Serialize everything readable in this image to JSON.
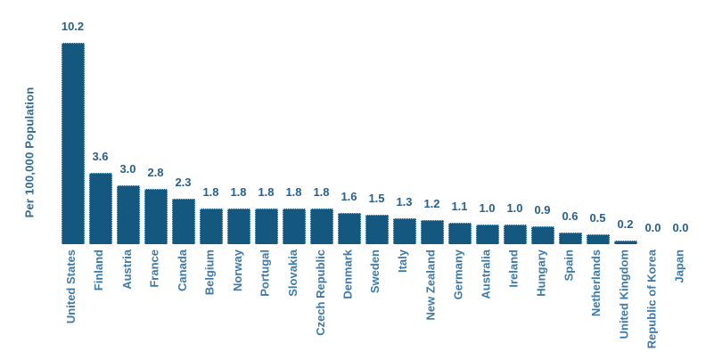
{
  "chart_data": {
    "type": "bar",
    "title": "",
    "xlabel": "",
    "ylabel": "Per 100,000 Population",
    "categories": [
      "United States",
      "Finland",
      "Austria",
      "France",
      "Canada",
      "Belgium",
      "Norway",
      "Portugal",
      "Slovakia",
      "Czech Republic",
      "Denmark",
      "Sweden",
      "Italy",
      "New Zealand",
      "Germany",
      "Australia",
      "Ireland",
      "Hungary",
      "Spain",
      "Netherlands",
      "United Kingdom",
      "Republic of Korea",
      "Japan"
    ],
    "values": [
      10.2,
      3.6,
      3.0,
      2.8,
      2.3,
      1.8,
      1.8,
      1.8,
      1.8,
      1.8,
      1.6,
      1.5,
      1.3,
      1.2,
      1.1,
      1.0,
      1.0,
      0.9,
      0.6,
      0.5,
      0.2,
      0.0,
      0.0
    ],
    "value_labels": [
      "10.2",
      "3.6",
      "3.0",
      "2.8",
      "2.3",
      "1.8",
      "1.8",
      "1.8",
      "1.8",
      "1.8",
      "1.6",
      "1.5",
      "1.3",
      "1.2",
      "1.1",
      "1.0",
      "1.0",
      "0.9",
      "0.6",
      "0.5",
      "0.2",
      "0.0",
      "0.0"
    ],
    "ylim": [
      0,
      10.2
    ],
    "grid": false,
    "legend": false
  },
  "colors": {
    "background": "#ffffff",
    "bar_fill": "#14587f",
    "bar_border": "#aacbe2",
    "value_label_text": "#27608e",
    "category_label_text": "#3d79a9",
    "axis_label_text": "#2e6b99"
  }
}
